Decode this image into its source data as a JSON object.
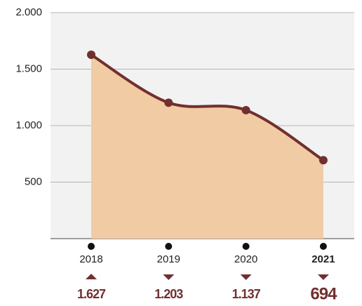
{
  "chart_data": {
    "type": "area",
    "categories": [
      "2018",
      "2019",
      "2020",
      "2021"
    ],
    "values": [
      1627,
      1203,
      1137,
      694
    ],
    "value_labels": [
      "1.627",
      "1.203",
      "1.137",
      "694"
    ],
    "trend": [
      "up",
      "down",
      "down",
      "down"
    ],
    "color": "#722f2f",
    "fill_color": "#f0cba3",
    "ylim": [
      0,
      2000
    ],
    "yticks": [
      {
        "value": 2000,
        "label": "2.000"
      },
      {
        "value": 1500,
        "label": "1.500"
      },
      {
        "value": 1000,
        "label": "1.000"
      },
      500
    ],
    "grid": true
  }
}
